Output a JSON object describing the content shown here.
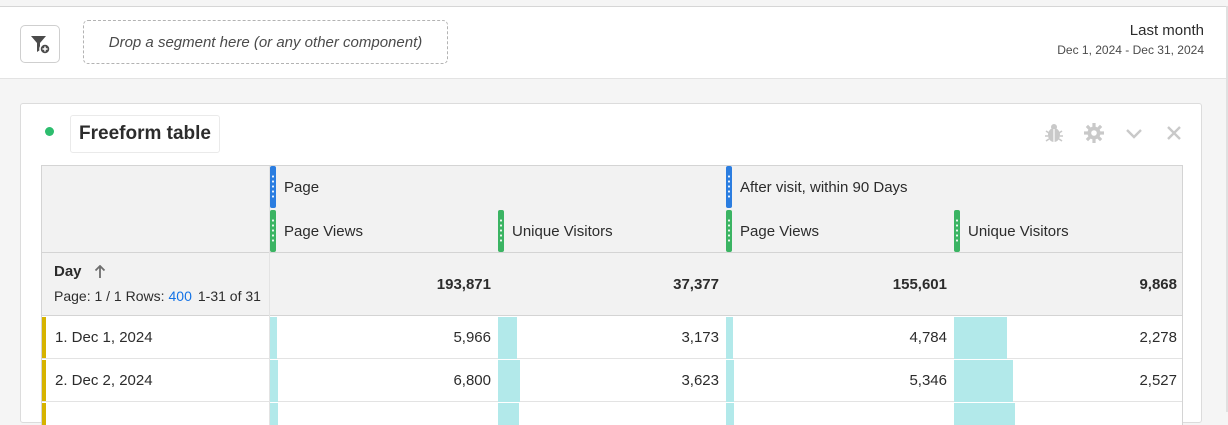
{
  "segment_bar": {
    "dropzone_placeholder": "Drop a segment here (or any other component)",
    "date_label": "Last month",
    "date_range": "Dec 1, 2024 - Dec 31, 2024"
  },
  "panel": {
    "title": "Freeform table",
    "status_color": "#2dbd6e",
    "tools": [
      "bug-icon",
      "gear-icon",
      "chevron-down-icon",
      "close-icon"
    ]
  },
  "table": {
    "dimension_label": "Day",
    "sort_icon": "arrow-up-icon",
    "pagination": {
      "page_text": "Page: 1 / 1 Rows:",
      "rows": "400",
      "range": "1-31 of 31"
    },
    "segments": [
      {
        "label": "Page",
        "color": "#2b7de0"
      },
      {
        "label": "After visit, within 90 Days",
        "color": "#2b7de0"
      }
    ],
    "metrics": [
      "Page Views",
      "Unique Visitors",
      "Page Views",
      "Unique Visitors"
    ],
    "totals": [
      "193,871",
      "37,377",
      "155,601",
      "9,868"
    ],
    "rows": [
      {
        "label": "1.  Dec 1, 2024",
        "values": [
          "5,966",
          "3,173",
          "4,784",
          "2,278"
        ],
        "fractions": [
          0.031,
          0.085,
          0.031,
          0.231
        ]
      },
      {
        "label": "2.  Dec 2, 2024",
        "values": [
          "6,800",
          "3,623",
          "5,346",
          "2,527"
        ],
        "fractions": [
          0.035,
          0.097,
          0.034,
          0.256
        ]
      },
      {
        "label": "",
        "values": [
          "",
          "",
          "",
          ""
        ],
        "fractions": [
          0.033,
          0.094,
          0.033,
          0.266
        ]
      }
    ]
  }
}
